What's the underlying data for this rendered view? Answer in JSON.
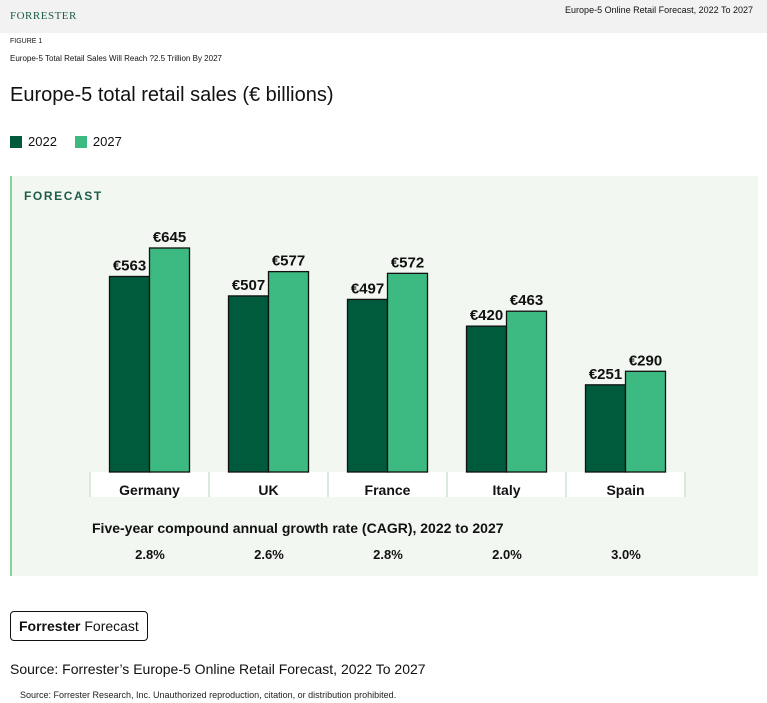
{
  "header": {
    "logo_text": "FORRESTER",
    "report_title": "Europe-5 Online Retail Forecast, 2022 To 2027"
  },
  "figure": {
    "label": "FIGURE 1",
    "subtitle": "Europe-5 Total Retail Sales Will Reach ?2.5 Trillion By 2027"
  },
  "colors": {
    "dark": "#005a3c",
    "light": "#3dba82"
  },
  "panel_label": "FORECAST",
  "chart_data": {
    "type": "bar",
    "title": "Europe-5 total retail sales (€ billions)",
    "categories": [
      "Germany",
      "UK",
      "France",
      "Italy",
      "Spain"
    ],
    "series": [
      {
        "name": "2022",
        "color": "#005a3c",
        "values": [
          563,
          507,
          497,
          420,
          251
        ],
        "labels": [
          "€563",
          "€507",
          "€497",
          "€420",
          "€251"
        ]
      },
      {
        "name": "2027",
        "color": "#3dba82",
        "values": [
          645,
          577,
          572,
          463,
          290
        ],
        "labels": [
          "€645",
          "€577",
          "€572",
          "€463",
          "€290"
        ]
      }
    ],
    "ylim": [
      0,
      645
    ],
    "legend": "top-left"
  },
  "cagr": {
    "title": "Five-year compound annual growth rate (CAGR), 2022 to 2027",
    "values": [
      "2.8%",
      "2.6%",
      "2.8%",
      "2.0%",
      "3.0%"
    ]
  },
  "badge": {
    "bold": "Forrester",
    "rest": " Forecast"
  },
  "source_main": "Source: Forrester’s Europe-5 Online Retail Forecast, 2022 To 2027",
  "source_small": "Source: Forrester Research, Inc. Unauthorized reproduction, citation, or distribution prohibited."
}
